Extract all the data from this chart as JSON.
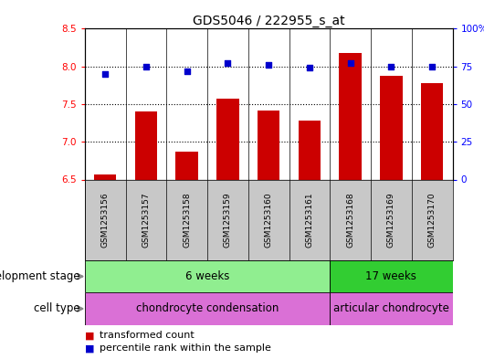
{
  "title": "GDS5046 / 222955_s_at",
  "samples": [
    "GSM1253156",
    "GSM1253157",
    "GSM1253158",
    "GSM1253159",
    "GSM1253160",
    "GSM1253161",
    "GSM1253168",
    "GSM1253169",
    "GSM1253170"
  ],
  "transformed_count": [
    6.57,
    7.4,
    6.87,
    7.57,
    7.42,
    7.28,
    8.18,
    7.88,
    7.78
  ],
  "percentile_rank": [
    70,
    75,
    72,
    77,
    76,
    74,
    77,
    75,
    75
  ],
  "ylim_left": [
    6.5,
    8.5
  ],
  "ylim_right": [
    0,
    100
  ],
  "yticks_left": [
    6.5,
    7.0,
    7.5,
    8.0,
    8.5
  ],
  "yticks_right": [
    0,
    25,
    50,
    75,
    100
  ],
  "ytick_labels_right": [
    "0",
    "25",
    "50",
    "75",
    "100%"
  ],
  "bar_color": "#cc0000",
  "dot_color": "#0000cc",
  "groups": [
    {
      "label": "6 weeks",
      "start": 0,
      "end": 6,
      "color": "#90ee90"
    },
    {
      "label": "17 weeks",
      "start": 6,
      "end": 9,
      "color": "#32cd32"
    }
  ],
  "cell_groups": [
    {
      "label": "chondrocyte condensation",
      "start": 0,
      "end": 6,
      "color": "#da70d6"
    },
    {
      "label": "articular chondrocyte",
      "start": 6,
      "end": 9,
      "color": "#da70d6"
    }
  ],
  "row_labels": [
    "development stage",
    "cell type"
  ],
  "legend_items": [
    {
      "color": "#cc0000",
      "label": "transformed count"
    },
    {
      "color": "#0000cc",
      "label": "percentile rank within the sample"
    }
  ],
  "bar_width": 0.55,
  "dot_size": 25,
  "title_fontsize": 10,
  "tick_fontsize": 7.5,
  "label_fontsize": 8.5,
  "sample_fontsize": 6.5,
  "legend_fontsize": 8,
  "sample_bg_color": "#c8c8c8",
  "dot_marker": "s"
}
